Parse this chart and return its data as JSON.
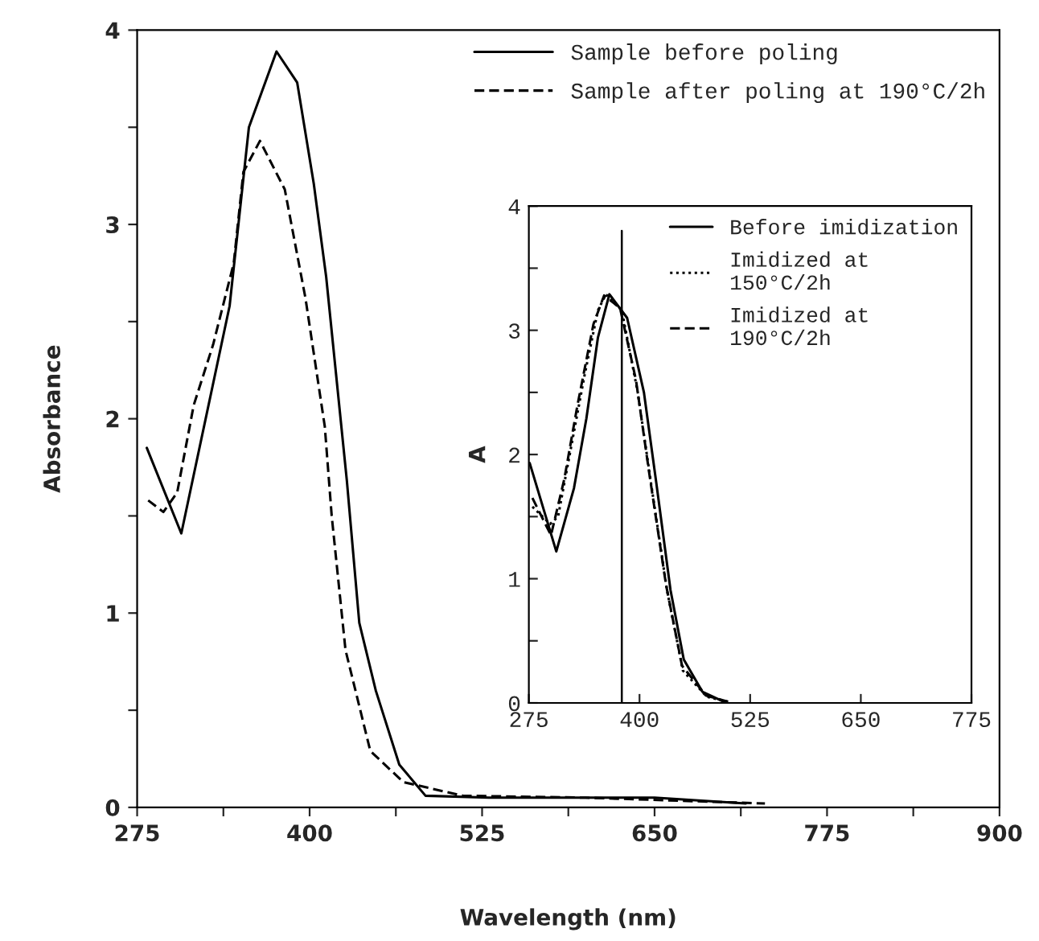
{
  "chart_data": [
    {
      "type": "line",
      "xlabel": "Wavelength (nm)",
      "ylabel": "Absorbance",
      "xlim": [
        275,
        900
      ],
      "ylim": [
        0,
        4
      ],
      "xticks": [
        275,
        {
          "value": 337.5,
          "label": null
        },
        400,
        {
          "value": 462.5,
          "label": null
        },
        525,
        {
          "value": 587.5,
          "label": null
        },
        650,
        {
          "value": 712.5,
          "label": null
        },
        775,
        {
          "value": 837.5,
          "label": null
        },
        900
      ],
      "yticks": [
        0,
        {
          "value": 0.5,
          "label": null
        },
        1,
        {
          "value": 1.5,
          "label": null
        },
        2,
        {
          "value": 2.5,
          "label": null
        },
        3,
        {
          "value": 3.5,
          "label": null
        },
        4
      ],
      "legend": "top right",
      "marker": "none",
      "series": [
        {
          "name": "Sample before poling",
          "color": "#000000",
          "line_style": "solid",
          "x": [
            282,
            307,
            342,
            356,
            376,
            391,
            403,
            412,
            427,
            436,
            448,
            465,
            484,
            530,
            650,
            716
          ],
          "values": [
            1.85,
            1.41,
            2.58,
            3.5,
            3.89,
            3.73,
            3.21,
            2.73,
            1.68,
            0.95,
            0.6,
            0.22,
            0.06,
            0.05,
            0.05,
            0.02
          ]
        },
        {
          "name": "Sample after poling at 190°C/2h",
          "color": "#000000",
          "line_style": "dashed",
          "x": [
            283,
            294,
            304,
            316,
            330,
            345,
            352,
            364,
            382,
            397,
            411,
            416,
            426,
            444,
            468,
            511,
            600,
            730
          ],
          "values": [
            1.58,
            1.52,
            1.62,
            2.07,
            2.38,
            2.8,
            3.27,
            3.43,
            3.18,
            2.62,
            1.96,
            1.5,
            0.81,
            0.29,
            0.13,
            0.06,
            0.05,
            0.02
          ]
        }
      ]
    },
    {
      "type": "line",
      "ylabel": "A",
      "xlim": [
        275,
        775
      ],
      "ylim": [
        0,
        4
      ],
      "xticks": [
        275,
        400,
        525,
        650,
        775
      ],
      "yticks": [
        0,
        {
          "value": 0.5,
          "label": null
        },
        1,
        {
          "value": 1.5,
          "label": null
        },
        2,
        {
          "value": 2.5,
          "label": null
        },
        3,
        {
          "value": 3.5,
          "label": null
        },
        4
      ],
      "legend": "top right",
      "marker": "none",
      "ref_lines": [
        {
          "axis": "x",
          "value": 380,
          "label": null,
          "color": "#000000"
        }
      ],
      "series": [
        {
          "name": "Before imidization",
          "color": "#000000",
          "line_style": "solid",
          "x": [
            276,
            306,
            326,
            340,
            353,
            366,
            386,
            405,
            419,
            435,
            450,
            471,
            495
          ],
          "values": [
            1.93,
            1.22,
            1.73,
            2.29,
            2.94,
            3.29,
            3.1,
            2.5,
            1.77,
            0.91,
            0.35,
            0.09,
            0.01
          ]
        },
        {
          "name": "Imidized at\n150°C/2h",
          "color": "#000000",
          "line_style": "dotted",
          "x": [
            279,
            299,
            308,
            323,
            338,
            353,
            362,
            380,
            398,
            413,
            431,
            449,
            476,
            500
          ],
          "values": [
            1.58,
            1.44,
            1.5,
            2.07,
            2.64,
            3.16,
            3.29,
            3.16,
            2.5,
            1.77,
            0.91,
            0.26,
            0.05,
            0.01
          ]
        },
        {
          "name": "Imidized at\n190°C/2h",
          "color": "#000000",
          "line_style": "dashed",
          "x": [
            279,
            300,
            315,
            330,
            348,
            360,
            378,
            396,
            411,
            430,
            448,
            475,
            500
          ],
          "values": [
            1.65,
            1.35,
            1.8,
            2.4,
            3.05,
            3.28,
            3.18,
            2.6,
            1.85,
            0.95,
            0.3,
            0.06,
            0.01
          ]
        }
      ]
    }
  ]
}
